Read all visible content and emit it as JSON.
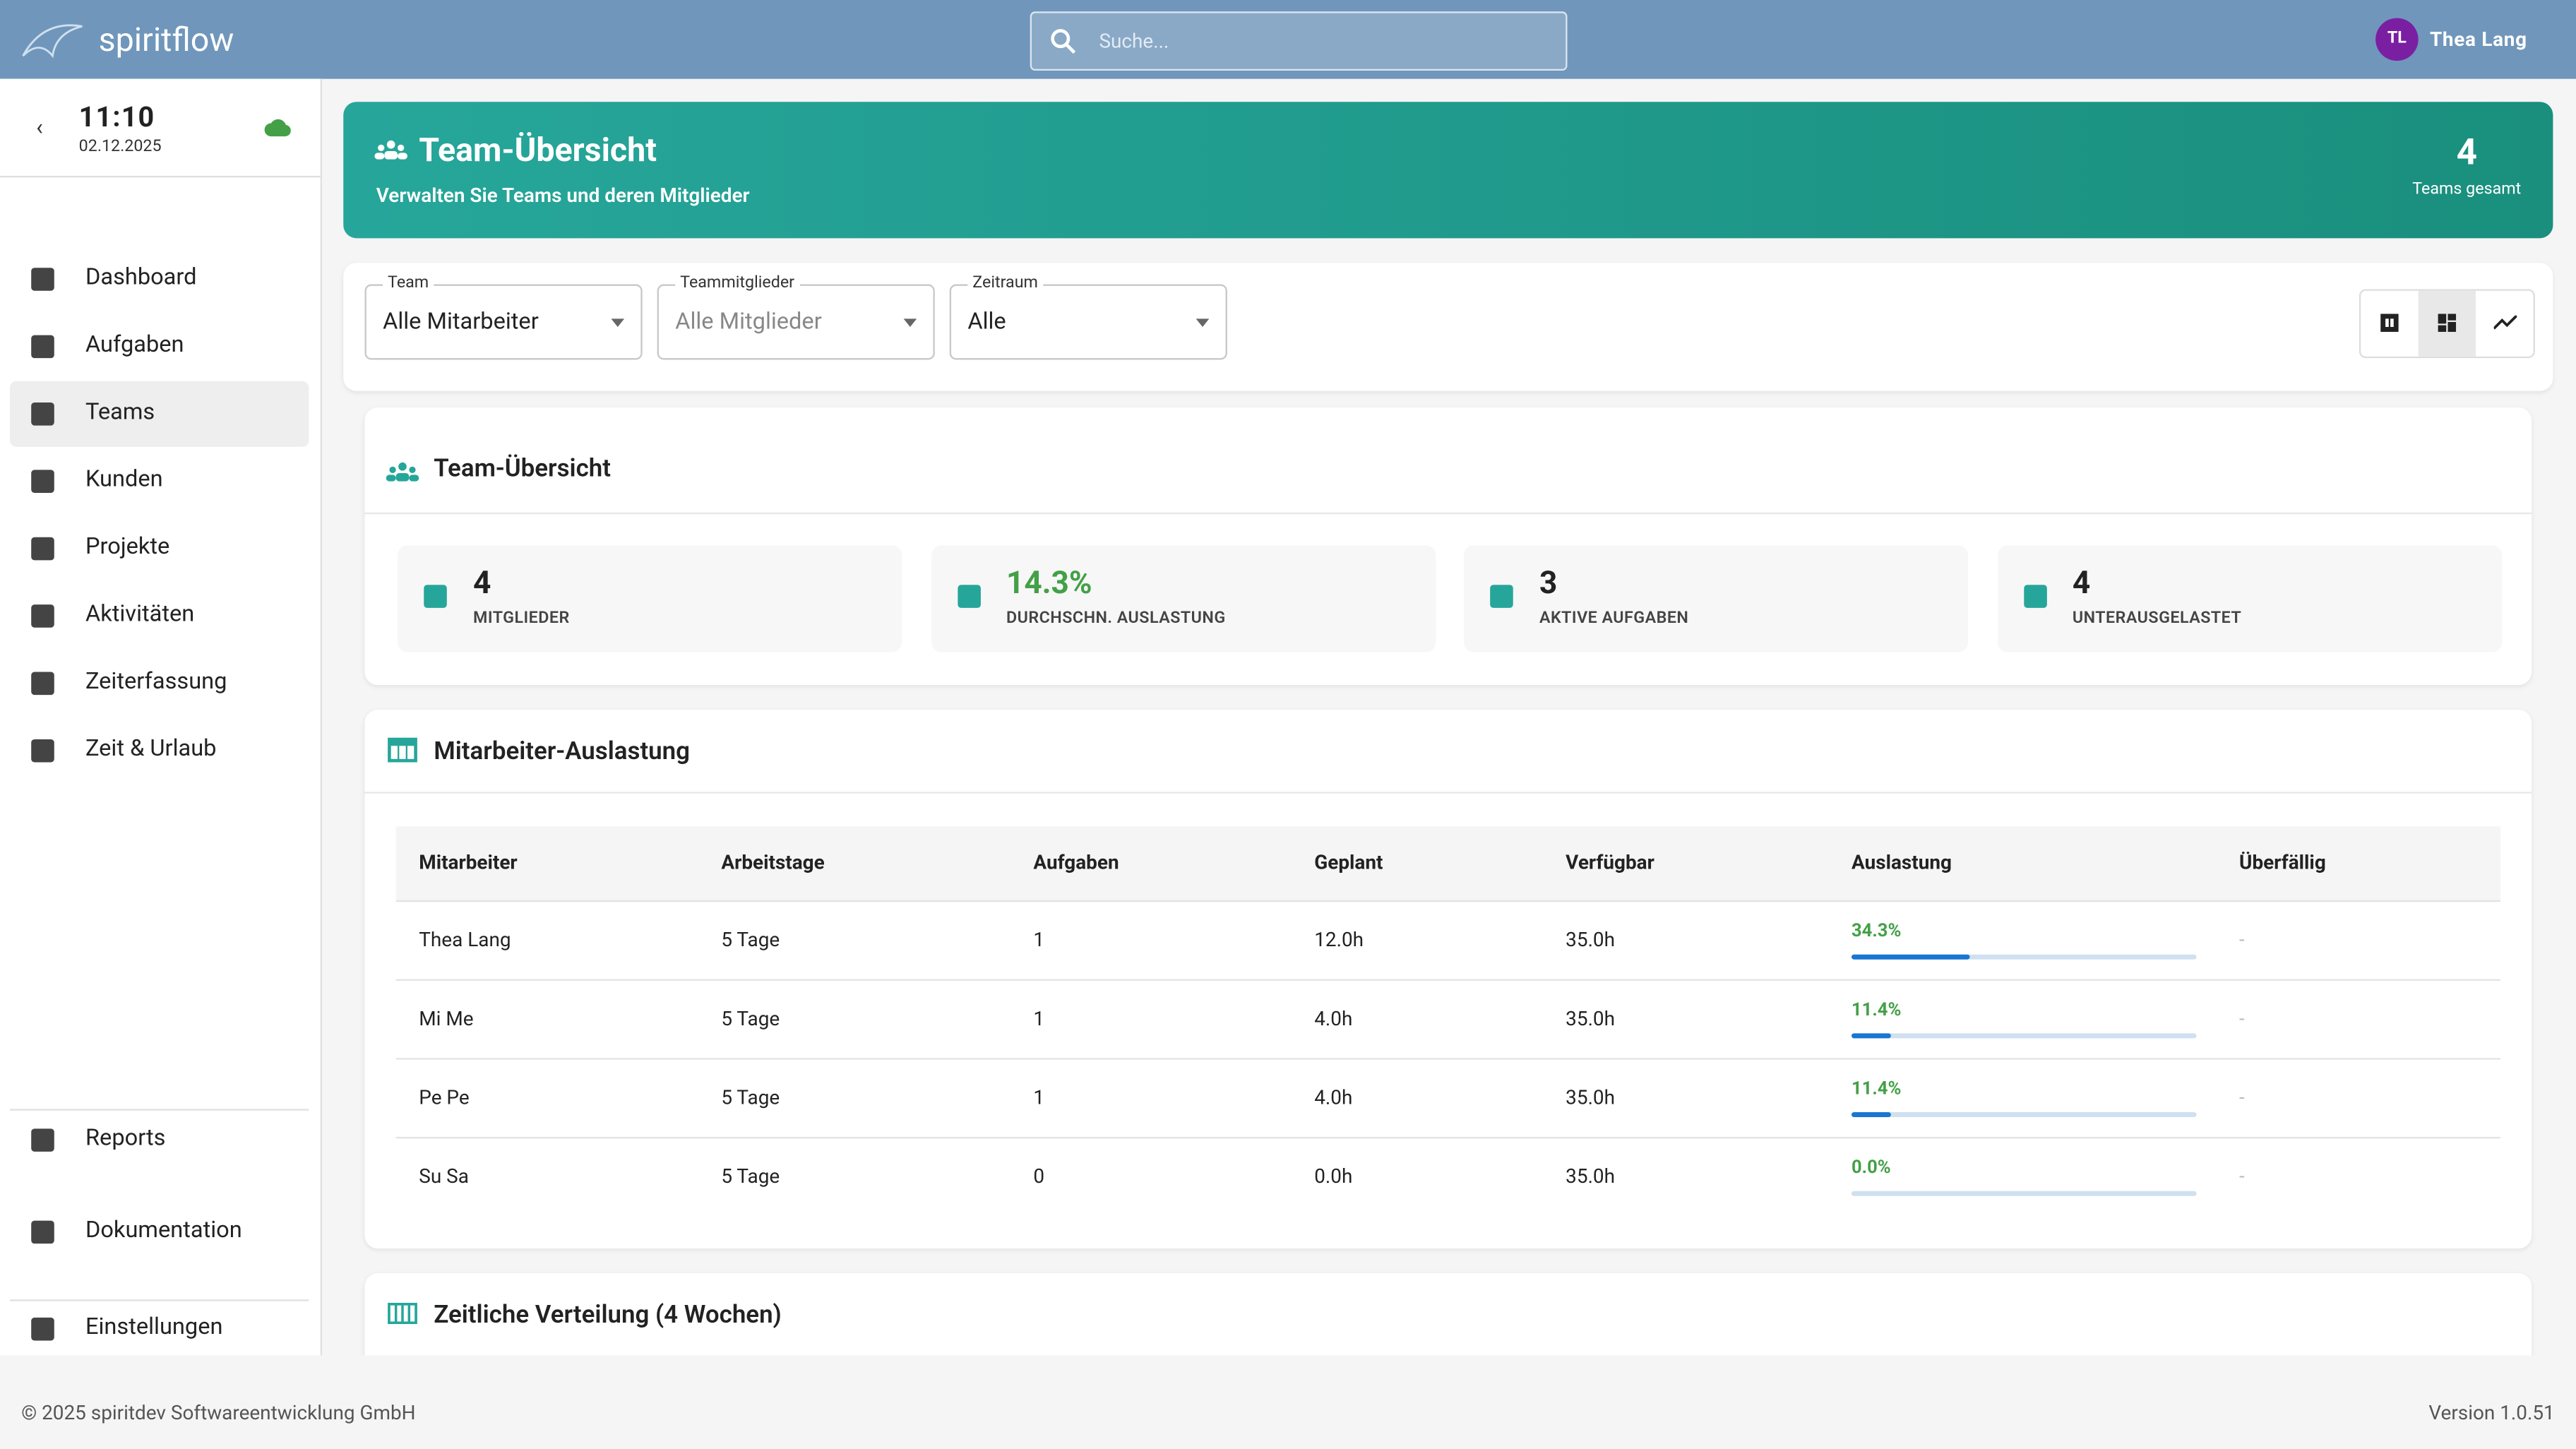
{
  "header": {
    "brand": "spiritflow",
    "search_placeholder": "Suche...",
    "user_initials": "TL",
    "user_name": "Thea Lang"
  },
  "sidebar": {
    "time": "11:10",
    "date": "02.12.2025",
    "nav": [
      "Dashboard",
      "Aufgaben",
      "Teams",
      "Kunden",
      "Projekte",
      "Aktivitäten",
      "Zeiterfassung",
      "Zeit & Urlaub"
    ],
    "bottom_nav": [
      "Reports",
      "Dokumentation",
      "Einstellungen"
    ]
  },
  "banner": {
    "title": "Team-Übersicht",
    "subtitle": "Verwalten Sie Teams und deren Mitglieder",
    "count": "4",
    "count_label": "Teams gesamt"
  },
  "filters": [
    {
      "label": "Team",
      "value": "Alle Mitarbeiter"
    },
    {
      "label": "Teammitglieder",
      "value": "Alle Mitglieder"
    },
    {
      "label": "Zeitraum",
      "value": "Alle"
    }
  ],
  "overview": {
    "title": "Team-Übersicht",
    "stats": [
      {
        "value": "4",
        "label": "MITGLIEDER"
      },
      {
        "value": "14.3%",
        "label": "DURCHSCHN. AUSLASTUNG"
      },
      {
        "value": "3",
        "label": "AKTIVE AUFGABEN"
      },
      {
        "value": "4",
        "label": "UNTERAUSGELASTET"
      }
    ]
  },
  "utilization": {
    "title": "Mitarbeiter-Auslastung",
    "columns": [
      "Mitarbeiter",
      "Arbeitstage",
      "Aufgaben",
      "Geplant",
      "Verfügbar",
      "Auslastung",
      "Überfällig"
    ],
    "rows": [
      {
        "name": "Thea Lang",
        "days": "5 Tage",
        "tasks": "1",
        "planned": "12.0h",
        "available": "35.0h",
        "utilization": 34.3,
        "utilization_label": "34.3%",
        "overdue": "-"
      },
      {
        "name": "Mi Me",
        "days": "5 Tage",
        "tasks": "1",
        "planned": "4.0h",
        "available": "35.0h",
        "utilization": 11.4,
        "utilization_label": "11.4%",
        "overdue": "-"
      },
      {
        "name": "Pe Pe",
        "days": "5 Tage",
        "tasks": "1",
        "planned": "4.0h",
        "available": "35.0h",
        "utilization": 11.4,
        "utilization_label": "11.4%",
        "overdue": "-"
      },
      {
        "name": "Su Sa",
        "days": "5 Tage",
        "tasks": "0",
        "planned": "0.0h",
        "available": "35.0h",
        "utilization": 0.0,
        "utilization_label": "0.0%",
        "overdue": "-"
      }
    ]
  },
  "distribution": {
    "title": "Zeitliche Verteilung (4 Wochen)"
  },
  "footer": {
    "copyright": "© 2025 spiritdev Softwareentwicklung GmbH",
    "version": "Version 1.0.51"
  }
}
